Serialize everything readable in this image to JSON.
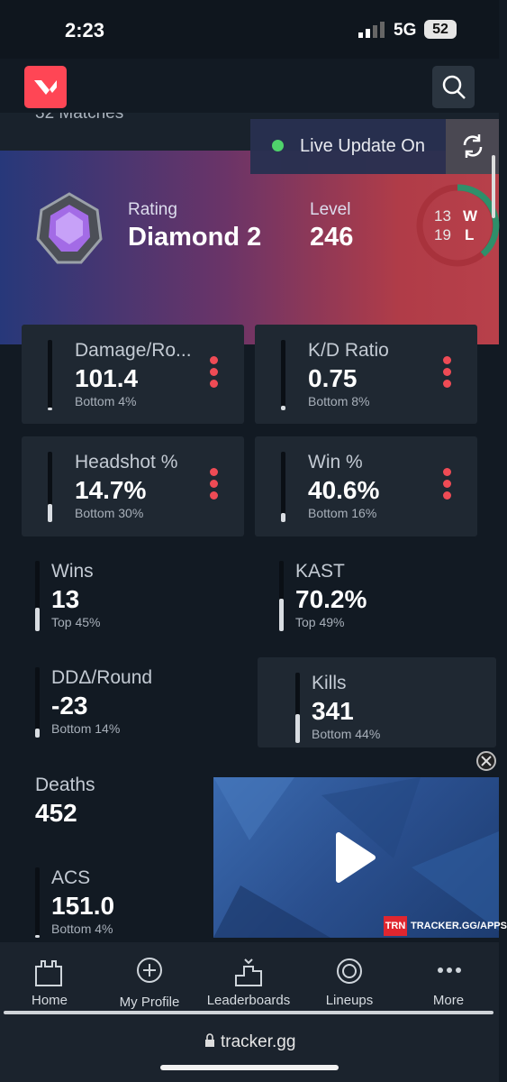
{
  "status_bar": {
    "time": "2:23",
    "network": "5G",
    "battery": "52"
  },
  "header": {
    "matches": "32 Matches",
    "live_update": "Live Update On"
  },
  "hero": {
    "rating_label": "Rating",
    "rating": "Diamond 2",
    "level_label": "Level",
    "level": "246",
    "wins": "13",
    "wins_label": "W",
    "losses": "19",
    "losses_label": "L"
  },
  "stats": [
    {
      "label": "Damage/Ro...",
      "value": "101.4",
      "rank": "Bottom 4%"
    },
    {
      "label": "K/D Ratio",
      "value": "0.75",
      "rank": "Bottom 8%"
    },
    {
      "label": "Headshot %",
      "value": "14.7%",
      "rank": "Bottom 30%"
    },
    {
      "label": "Win %",
      "value": "40.6%",
      "rank": "Bottom 16%"
    },
    {
      "label": "Wins",
      "value": "13",
      "rank": "Top 45%"
    },
    {
      "label": "KAST",
      "value": "70.2%",
      "rank": "Top 49%"
    },
    {
      "label": "DDΔ/Round",
      "value": "-23",
      "rank": "Bottom 14%"
    },
    {
      "label": "Kills",
      "value": "341",
      "rank": "Bottom 44%"
    },
    {
      "label": "Deaths",
      "value": "452"
    },
    {
      "label": "ACS",
      "value": "151.0",
      "rank": "Bottom 4%"
    }
  ],
  "ad": {
    "brand": "TRN",
    "link": "TRACKER.GG/APPS"
  },
  "nav": [
    "Home",
    "My Profile",
    "Leaderboards",
    "Lineups",
    "More"
  ],
  "url": "tracker.gg"
}
